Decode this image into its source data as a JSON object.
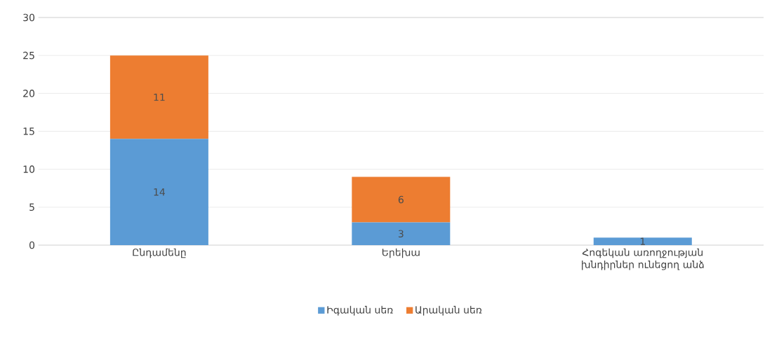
{
  "chart_data": {
    "type": "bar",
    "stacked": true,
    "categories": [
      "Ընդամենը",
      "Երեխա",
      "Հոգեկան առողջության խնդիրներ ունեցող անձ"
    ],
    "series": [
      {
        "name": "Իգական սեռ",
        "color": "#5b9bd5",
        "values": [
          14,
          3,
          1
        ],
        "value_labels": [
          "14",
          "3",
          "1"
        ]
      },
      {
        "name": "Արական սեռ",
        "color": "#ed7d31",
        "values": [
          11,
          6,
          0
        ],
        "value_labels": [
          "11",
          "6",
          null
        ]
      }
    ],
    "ylim": [
      0,
      30
    ],
    "yticks": [
      0,
      5,
      10,
      15,
      20,
      25,
      30
    ],
    "grid": "y",
    "legend": "bottom"
  }
}
